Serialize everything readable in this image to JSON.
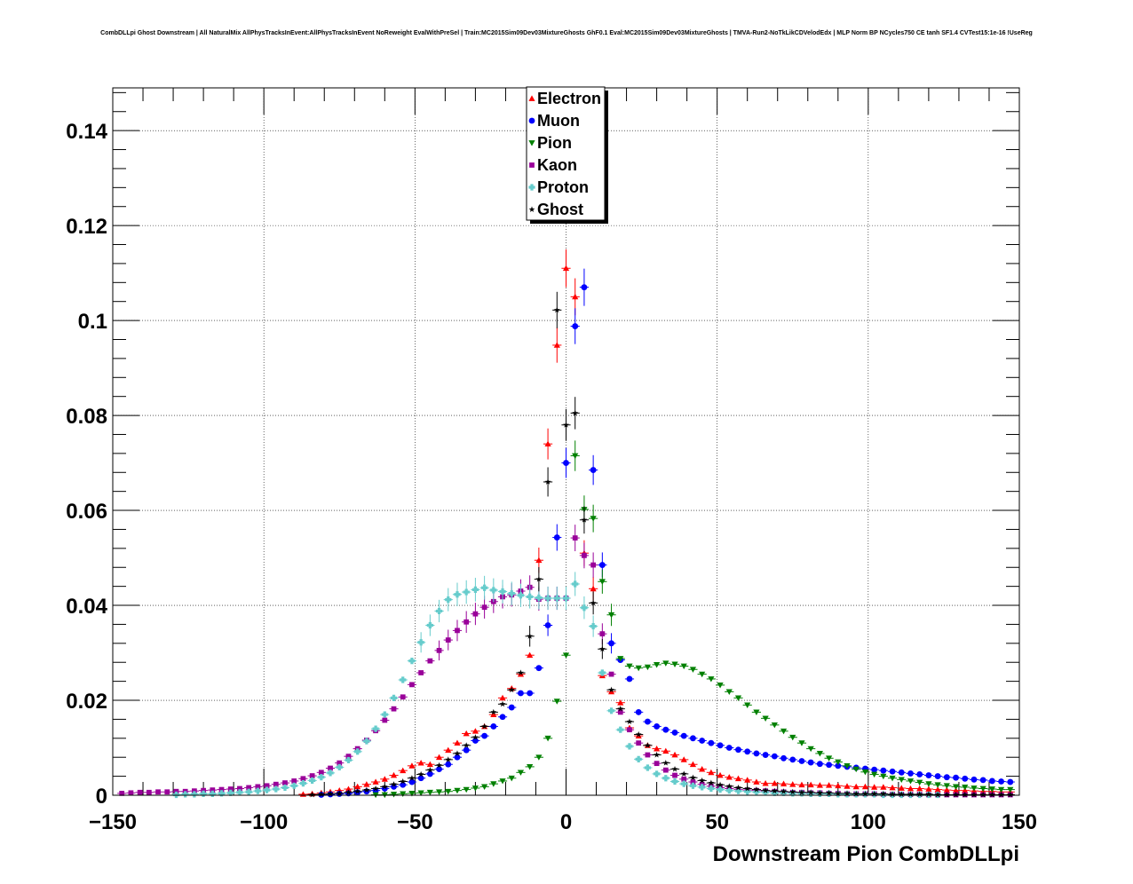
{
  "chart_data": {
    "type": "scatter",
    "title": "CombDLLpi Ghost Downstream | All NaturalMix AllPhysTracksInEvent:AllPhysTracksInEvent NoReweight EvalWithPreSel | Train:MC2015Sim09Dev03MixtureGhosts GhF0.1 Eval:MC2015Sim09Dev03MixtureGhosts | TMVA-Run2-NoTkLikCDVelodEdx | MLP Norm BP NCycles750 CE tanh SF1.4 CVTest15:1e-16 !UseReg",
    "xlabel": "Downstream Pion CombDLLpi",
    "ylabel": "",
    "xlim": [
      -150,
      150
    ],
    "ylim": [
      0,
      0.149
    ],
    "xticks": [
      -150,
      -100,
      -50,
      0,
      50,
      100,
      150
    ],
    "xtick_labels": [
      "−150",
      "−100",
      "−50",
      "0",
      "50",
      "100",
      "150"
    ],
    "yticks": [
      0,
      0.02,
      0.04,
      0.06,
      0.08,
      0.1,
      0.12,
      0.14
    ],
    "ytick_labels": [
      "0",
      "0.02",
      "0.04",
      "0.06",
      "0.08",
      "0.1",
      "0.12",
      "0.14"
    ],
    "grid": true,
    "legend_position": "top-center",
    "x": [
      -147,
      -144,
      -141,
      -138,
      -135,
      -132,
      -129,
      -126,
      -123,
      -120,
      -117,
      -114,
      -111,
      -108,
      -105,
      -102,
      -99,
      -96,
      -93,
      -90,
      -87,
      -84,
      -81,
      -78,
      -75,
      -72,
      -69,
      -66,
      -63,
      -60,
      -57,
      -54,
      -51,
      -48,
      -45,
      -42,
      -39,
      -36,
      -33,
      -30,
      -27,
      -24,
      -21,
      -18,
      -15,
      -12,
      -9,
      -6,
      -3,
      0,
      3,
      6,
      9,
      12,
      15,
      18,
      21,
      24,
      27,
      30,
      33,
      36,
      39,
      42,
      45,
      48,
      51,
      54,
      57,
      60,
      63,
      66,
      69,
      72,
      75,
      78,
      81,
      84,
      87,
      90,
      93,
      96,
      99,
      102,
      105,
      108,
      111,
      114,
      117,
      120,
      123,
      126,
      129,
      132,
      135,
      138,
      141,
      144,
      147
    ],
    "series": [
      {
        "name": "Electron",
        "color": "#ff0000",
        "marker": "triangle-up",
        "values": [
          0,
          0,
          0,
          0,
          0,
          0,
          0,
          0,
          0,
          0,
          0,
          0,
          0,
          0,
          0,
          0,
          0,
          0,
          0,
          0,
          0.0002,
          0.0003,
          0.0005,
          0.0007,
          0.001,
          0.0013,
          0.0018,
          0.0023,
          0.0028,
          0.0034,
          0.0042,
          0.0052,
          0.0062,
          0.0068,
          0.0065,
          0.008,
          0.0095,
          0.011,
          0.013,
          0.0135,
          0.0145,
          0.017,
          0.0205,
          0.0225,
          0.0255,
          0.0295,
          0.0495,
          0.074,
          0.0948,
          0.111,
          0.105,
          0.051,
          0.0435,
          0.0252,
          0.0218,
          0.0195,
          0.0142,
          0.0125,
          0.0105,
          0.0098,
          0.0093,
          0.0085,
          0.0075,
          0.0065,
          0.0055,
          0.0048,
          0.0042,
          0.0038,
          0.0035,
          0.0032,
          0.0028,
          0.0025,
          0.0025,
          0.0024,
          0.0023,
          0.0022,
          0.0022,
          0.0021,
          0.0021,
          0.002,
          0.0019,
          0.0018,
          0.0018,
          0.0017,
          0.0017,
          0.0016,
          0.0015,
          0.0014,
          0.0014,
          0.0013,
          0.0012,
          0.0011,
          0.001,
          0.001,
          0.0009,
          0.0008,
          0.0008,
          0.0007,
          0.0007
        ]
      },
      {
        "name": "Muon",
        "color": "#0000ff",
        "marker": "circle",
        "values": [
          0,
          0,
          0,
          0,
          0,
          0,
          0,
          0,
          0,
          0,
          0,
          0,
          0,
          0,
          0,
          0,
          0,
          0,
          0,
          0,
          0,
          0,
          0.0001,
          0.0002,
          0.0003,
          0.0004,
          0.0006,
          0.0008,
          0.001,
          0.0014,
          0.0018,
          0.0022,
          0.0028,
          0.0036,
          0.0045,
          0.0055,
          0.0065,
          0.008,
          0.0095,
          0.0115,
          0.0125,
          0.0145,
          0.0165,
          0.0185,
          0.0215,
          0.0215,
          0.0268,
          0.0358,
          0.0543,
          0.07,
          0.0988,
          0.107,
          0.0685,
          0.0485,
          0.032,
          0.0285,
          0.0245,
          0.0175,
          0.0155,
          0.0145,
          0.0138,
          0.0132,
          0.0125,
          0.012,
          0.0115,
          0.011,
          0.0105,
          0.01,
          0.0096,
          0.0092,
          0.0088,
          0.0085,
          0.0082,
          0.0078,
          0.0075,
          0.0072,
          0.0069,
          0.0066,
          0.0064,
          0.0062,
          0.006,
          0.0058,
          0.0056,
          0.0054,
          0.0052,
          0.005,
          0.0048,
          0.0046,
          0.0044,
          0.0042,
          0.004,
          0.0038,
          0.0037,
          0.0035,
          0.0033,
          0.0032,
          0.003,
          0.0029,
          0.0028
        ]
      },
      {
        "name": "Pion",
        "color": "#008000",
        "marker": "triangle-down",
        "values": [
          0,
          0,
          0,
          0,
          0,
          0,
          0,
          0,
          0,
          0,
          0,
          0,
          0,
          0,
          0,
          0,
          0,
          0,
          0,
          0,
          0,
          0,
          0,
          0,
          0,
          0,
          0,
          0,
          0.0001,
          0.0001,
          0.0002,
          0.0003,
          0.0004,
          0.0005,
          0.0006,
          0.0007,
          0.0008,
          0.001,
          0.0012,
          0.0015,
          0.0018,
          0.0024,
          0.003,
          0.0036,
          0.0048,
          0.006,
          0.008,
          0.012,
          0.0198,
          0.0295,
          0.0715,
          0.0602,
          0.0583,
          0.045,
          0.038,
          0.0288,
          0.0272,
          0.0268,
          0.027,
          0.0275,
          0.0278,
          0.0276,
          0.0272,
          0.0265,
          0.0255,
          0.0245,
          0.0232,
          0.0218,
          0.0205,
          0.019,
          0.0175,
          0.0162,
          0.0148,
          0.0135,
          0.0122,
          0.011,
          0.0098,
          0.0088,
          0.0078,
          0.007,
          0.0062,
          0.0055,
          0.0049,
          0.0044,
          0.004,
          0.0036,
          0.0033,
          0.003,
          0.0027,
          0.0024,
          0.0022,
          0.002,
          0.0018,
          0.0017,
          0.0015,
          0.0014,
          0.0013,
          0.0012,
          0.0012
        ]
      },
      {
        "name": "Kaon",
        "color": "#990099",
        "marker": "square",
        "values": [
          0.0004,
          0.0005,
          0.0006,
          0.0006,
          0.0007,
          0.0007,
          0.0008,
          0.0008,
          0.0009,
          0.001,
          0.0011,
          0.0012,
          0.0013,
          0.0014,
          0.0016,
          0.0018,
          0.002,
          0.0023,
          0.0026,
          0.003,
          0.0035,
          0.0041,
          0.0048,
          0.0057,
          0.0068,
          0.0082,
          0.0098,
          0.0116,
          0.0136,
          0.0158,
          0.0182,
          0.0207,
          0.0233,
          0.0258,
          0.0283,
          0.0305,
          0.0327,
          0.0347,
          0.0365,
          0.0382,
          0.0396,
          0.0408,
          0.0418,
          0.0422,
          0.043,
          0.0438,
          0.0413,
          0.0415,
          0.0415,
          0.0415,
          0.0542,
          0.0505,
          0.0485,
          0.034,
          0.0255,
          0.0175,
          0.0138,
          0.011,
          0.0085,
          0.0067,
          0.0053,
          0.0042,
          0.0034,
          0.0028,
          0.0023,
          0.0019,
          0.0016,
          0.0014,
          0.0012,
          0.0011,
          0.001,
          0.0009,
          0.0008,
          0.0007,
          0.0006,
          0.0006,
          0.0005,
          0.0005,
          0.0004,
          0.0004,
          0.0003,
          0.0003,
          0.0003,
          0.0003,
          0.0002,
          0.0002,
          0.0002,
          0.0002,
          0.0002,
          0.0001,
          0.0001,
          0.0001,
          0.0001,
          0.0001,
          0.0001,
          0.0001,
          0.0001,
          0.0001,
          0.0001
        ]
      },
      {
        "name": "Proton",
        "color": "#66cccc",
        "marker": "cross",
        "values": [
          0,
          0,
          0,
          0,
          0,
          0,
          0.0001,
          0.0002,
          0.0002,
          0.0003,
          0.0003,
          0.0004,
          0.0005,
          0.0006,
          0.0007,
          0.0009,
          0.0011,
          0.0013,
          0.0016,
          0.002,
          0.0025,
          0.0031,
          0.0038,
          0.0047,
          0.0059,
          0.0074,
          0.0092,
          0.0114,
          0.014,
          0.017,
          0.0205,
          0.0243,
          0.0283,
          0.0322,
          0.0358,
          0.0388,
          0.0412,
          0.0423,
          0.0428,
          0.0433,
          0.0437,
          0.0432,
          0.0429,
          0.0425,
          0.0421,
          0.0418,
          0.0416,
          0.0415,
          0.0415,
          0.0415,
          0.0445,
          0.0395,
          0.0356,
          0.0258,
          0.0178,
          0.0138,
          0.0103,
          0.0076,
          0.0058,
          0.0045,
          0.0036,
          0.0029,
          0.0024,
          0.002,
          0.0017,
          0.0014,
          0.0012,
          0.001,
          0.0009,
          0.0008,
          0.0007,
          0.0006,
          0.0005,
          0.0005,
          0.0004,
          0.0004,
          0.0003,
          0.0003,
          0.0003,
          0.0002,
          0.0002,
          0.0002,
          0.0002,
          0.0002,
          0.0001,
          0.0001,
          0.0001,
          0.0001,
          0.0001,
          0.0001,
          0.0001,
          0,
          0,
          0,
          0,
          0,
          0,
          0,
          0
        ]
      },
      {
        "name": "Ghost",
        "color": "#000000",
        "marker": "star",
        "values": [
          0,
          0,
          0,
          0,
          0,
          0,
          0,
          0,
          0,
          0,
          0,
          0,
          0,
          0,
          0,
          0,
          0,
          0,
          0,
          0,
          0,
          0.0001,
          0.0002,
          0.0003,
          0.0004,
          0.0006,
          0.0008,
          0.0011,
          0.0014,
          0.0018,
          0.0023,
          0.0029,
          0.0036,
          0.0044,
          0.0053,
          0.0063,
          0.0075,
          0.0088,
          0.0105,
          0.0122,
          0.0145,
          0.0175,
          0.0192,
          0.0222,
          0.0258,
          0.0335,
          0.0455,
          0.066,
          0.1022,
          0.078,
          0.0805,
          0.058,
          0.0405,
          0.0308,
          0.0222,
          0.0182,
          0.0155,
          0.0128,
          0.0105,
          0.0085,
          0.0068,
          0.0055,
          0.0045,
          0.0037,
          0.0031,
          0.0026,
          0.0022,
          0.0019,
          0.0016,
          0.0014,
          0.0012,
          0.001,
          0.0009,
          0.0008,
          0.0007,
          0.0006,
          0.0006,
          0.0005,
          0.0005,
          0.0004,
          0.0004,
          0.0003,
          0.0003,
          0.0003,
          0.0003,
          0.0002,
          0.0002,
          0.0002,
          0.0002,
          0.0002,
          0.0001,
          0.0001,
          0.0001,
          0.0001,
          0.0001,
          0.0001,
          0.0001,
          0.0001,
          0.0001
        ]
      }
    ]
  }
}
